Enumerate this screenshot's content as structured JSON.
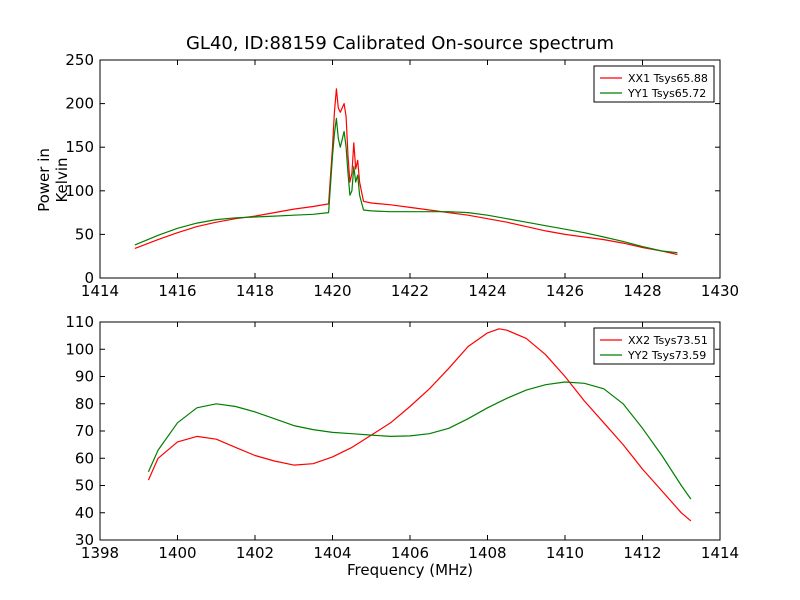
{
  "page": {
    "title": "GL40, ID:88159 Calibrated On-source spectrum"
  },
  "chart_data": [
    {
      "type": "line",
      "title": "GL40, ID:88159 Calibrated On-source spectrum",
      "xlabel": "",
      "ylabel": "Power in Kelvin",
      "xlim": [
        1414,
        1430
      ],
      "ylim": [
        0,
        250
      ],
      "xticks": [
        1414,
        1416,
        1418,
        1420,
        1422,
        1424,
        1426,
        1428,
        1430
      ],
      "yticks": [
        0,
        50,
        100,
        150,
        200,
        250
      ],
      "legend_position": "top-right",
      "grid": false,
      "series": [
        {
          "name": "XX1 Tsys65.88",
          "color": "#ff0000",
          "x": [
            1414.9,
            1415.5,
            1416,
            1416.5,
            1417,
            1417.5,
            1418,
            1418.5,
            1419,
            1419.5,
            1419.9,
            1420.0,
            1420.05,
            1420.1,
            1420.15,
            1420.2,
            1420.3,
            1420.35,
            1420.4,
            1420.45,
            1420.5,
            1420.55,
            1420.6,
            1420.65,
            1420.7,
            1420.8,
            1421,
            1421.5,
            1422,
            1422.5,
            1423,
            1423.5,
            1424,
            1424.5,
            1425,
            1425.5,
            1426,
            1426.5,
            1427,
            1427.5,
            1428,
            1428.5,
            1428.9
          ],
          "y": [
            34,
            44,
            52,
            59,
            64,
            68,
            71,
            75,
            79,
            82,
            85,
            150,
            190,
            217,
            195,
            190,
            200,
            185,
            140,
            110,
            120,
            155,
            125,
            135,
            110,
            88,
            86,
            84,
            81,
            78,
            75,
            72,
            68,
            64,
            59,
            54,
            50,
            47,
            44,
            40,
            35,
            31,
            27
          ]
        },
        {
          "name": "YY1 Tsys65.72",
          "color": "#008000",
          "x": [
            1414.9,
            1415.5,
            1416,
            1416.5,
            1417,
            1417.5,
            1418,
            1418.5,
            1419,
            1419.5,
            1419.9,
            1420.0,
            1420.05,
            1420.1,
            1420.15,
            1420.2,
            1420.3,
            1420.35,
            1420.4,
            1420.45,
            1420.5,
            1420.55,
            1420.6,
            1420.65,
            1420.7,
            1420.8,
            1421,
            1421.5,
            1422,
            1422.5,
            1423,
            1423.5,
            1424,
            1424.5,
            1425,
            1425.5,
            1426,
            1426.5,
            1427,
            1427.5,
            1428,
            1428.5,
            1428.9
          ],
          "y": [
            38,
            49,
            57,
            63,
            67,
            69,
            70,
            71,
            72,
            73,
            75,
            140,
            165,
            183,
            160,
            150,
            168,
            150,
            120,
            95,
            100,
            128,
            110,
            118,
            95,
            78,
            77,
            76,
            76,
            76,
            76,
            75,
            72,
            68,
            64,
            60,
            56,
            52,
            47,
            42,
            36,
            31,
            29
          ]
        }
      ]
    },
    {
      "type": "line",
      "title": "",
      "xlabel": "Frequency (MHz)",
      "ylabel": "",
      "xlim": [
        1398,
        1414
      ],
      "ylim": [
        30,
        110
      ],
      "xticks": [
        1398,
        1400,
        1402,
        1404,
        1406,
        1408,
        1410,
        1412,
        1414
      ],
      "yticks": [
        30,
        40,
        50,
        60,
        70,
        80,
        90,
        100,
        110
      ],
      "legend_position": "top-right",
      "grid": false,
      "series": [
        {
          "name": "XX2 Tsys73.51",
          "color": "#ff0000",
          "x": [
            1399.25,
            1399.5,
            1400,
            1400.5,
            1401,
            1401.5,
            1402,
            1402.5,
            1403,
            1403.5,
            1404,
            1404.5,
            1405,
            1405.5,
            1406,
            1406.5,
            1407,
            1407.5,
            1408,
            1408.3,
            1408.5,
            1409,
            1409.5,
            1410,
            1410.5,
            1411,
            1411.5,
            1412,
            1412.5,
            1413,
            1413.25
          ],
          "y": [
            52,
            60,
            66,
            68,
            67,
            64,
            61,
            59,
            57.5,
            58,
            60.5,
            64,
            68.5,
            73,
            79,
            85.5,
            93,
            101,
            106,
            107.5,
            107,
            104,
            98,
            90,
            81,
            73,
            65,
            56,
            48,
            40,
            37
          ]
        },
        {
          "name": "YY2 Tsys73.59",
          "color": "#008000",
          "x": [
            1399.25,
            1399.5,
            1400,
            1400.5,
            1401,
            1401.5,
            1402,
            1402.5,
            1403,
            1403.5,
            1404,
            1404.5,
            1405,
            1405.5,
            1406,
            1406.5,
            1407,
            1407.5,
            1408,
            1408.5,
            1409,
            1409.5,
            1410,
            1410.5,
            1411,
            1411.5,
            1412,
            1412.5,
            1413,
            1413.25
          ],
          "y": [
            55,
            63,
            73,
            78.5,
            80,
            79,
            77,
            74.5,
            72,
            70.5,
            69.5,
            69,
            68.5,
            68,
            68.2,
            69,
            71,
            74.5,
            78.5,
            82,
            85,
            87,
            88,
            87.5,
            85.5,
            80,
            71,
            61,
            50,
            45
          ]
        }
      ]
    }
  ]
}
